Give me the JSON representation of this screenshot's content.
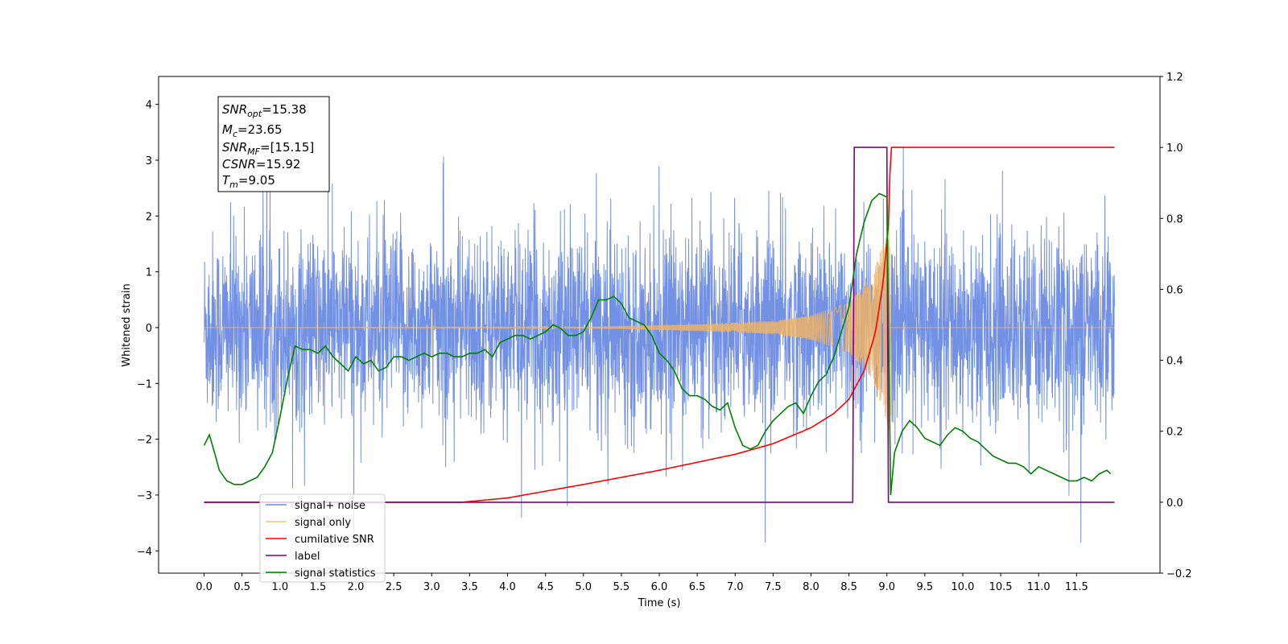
{
  "chart_data": {
    "type": "line",
    "title": "",
    "xlabel": "Time (s)",
    "ylabel_left": "Whitened strain",
    "ylabel_right": "",
    "xlim": [
      -0.6,
      12.6
    ],
    "ylim_left": [
      -4.4,
      4.5
    ],
    "ylim_right": [
      -0.2,
      1.2
    ],
    "x_ticks": [
      "0.0",
      "0.5",
      "1.0",
      "1.5",
      "2.0",
      "2.5",
      "3.0",
      "3.5",
      "4.0",
      "4.5",
      "5.0",
      "5.5",
      "6.0",
      "6.5",
      "7.0",
      "7.5",
      "8.0",
      "8.5",
      "9.0",
      "9.5",
      "10.0",
      "10.5",
      "11.0",
      "11.5"
    ],
    "y_ticks_left": [
      "−4",
      "−3",
      "−2",
      "−1",
      "0",
      "1",
      "2",
      "3",
      "4"
    ],
    "y_ticks_right": [
      "−0.2",
      "0.0",
      "0.2",
      "0.4",
      "0.6",
      "0.8",
      "1.0",
      "1.2"
    ],
    "grid": false,
    "legend_position": "lower-left",
    "info_box": {
      "snr_opt": "=15.38",
      "mc": "=23.65",
      "snr_mf": "=[15.15]",
      "csnr": "=15.92",
      "tm": "=9.05"
    },
    "series": [
      {
        "name": "signal+ noise",
        "axis": "left",
        "color": "#6b8be3",
        "note": "whitened noise + signal, roughly ±1.5 std with spikes to about 4.1",
        "x_range": [
          0,
          12
        ],
        "amplitude_range": [
          -3.85,
          4.13
        ]
      },
      {
        "name": "signal only",
        "axis": "left",
        "color": "#f4b45f",
        "x": [
          0,
          4.5,
          5.5,
          6.5,
          7.5,
          8.0,
          8.5,
          8.8,
          9.0,
          9.05,
          9.1,
          12
        ],
        "envelope": [
          0,
          0.005,
          0.03,
          0.06,
          0.12,
          0.22,
          0.45,
          0.9,
          1.7,
          2.0,
          0,
          0
        ]
      },
      {
        "name": "cumilative SNR",
        "axis": "right",
        "color": "#ff0000",
        "x": [
          0,
          3.4,
          4.0,
          5.0,
          6.0,
          7.0,
          7.5,
          8.0,
          8.3,
          8.5,
          8.7,
          8.85,
          8.95,
          9.02,
          9.05,
          12
        ],
        "values": [
          0.0,
          0.0,
          0.012,
          0.05,
          0.09,
          0.135,
          0.165,
          0.21,
          0.25,
          0.29,
          0.37,
          0.48,
          0.62,
          0.78,
          1.0,
          1.0
        ]
      },
      {
        "name": "label",
        "axis": "right",
        "color": "#800080",
        "x": [
          0,
          8.55,
          8.57,
          9.0,
          9.02,
          12
        ],
        "values": [
          0,
          0,
          1,
          1,
          0,
          0
        ]
      },
      {
        "name": "signal statistics",
        "axis": "right",
        "color": "#008000",
        "x": [
          0.0,
          0.07,
          0.15,
          0.2,
          0.3,
          0.4,
          0.5,
          0.6,
          0.7,
          0.8,
          0.9,
          1.0,
          1.1,
          1.2,
          1.3,
          1.4,
          1.5,
          1.6,
          1.7,
          1.8,
          1.9,
          2.0,
          2.1,
          2.2,
          2.3,
          2.4,
          2.5,
          2.6,
          2.7,
          2.8,
          2.9,
          3.0,
          3.1,
          3.2,
          3.3,
          3.4,
          3.5,
          3.6,
          3.7,
          3.8,
          3.9,
          4.0,
          4.1,
          4.2,
          4.3,
          4.4,
          4.5,
          4.6,
          4.7,
          4.8,
          4.9,
          5.0,
          5.1,
          5.2,
          5.3,
          5.4,
          5.5,
          5.6,
          5.7,
          5.8,
          5.9,
          6.0,
          6.1,
          6.2,
          6.3,
          6.4,
          6.5,
          6.6,
          6.7,
          6.8,
          6.9,
          7.0,
          7.1,
          7.2,
          7.3,
          7.4,
          7.5,
          7.6,
          7.7,
          7.8,
          7.9,
          8.0,
          8.1,
          8.2,
          8.3,
          8.4,
          8.5,
          8.6,
          8.7,
          8.8,
          8.9,
          9.0,
          9.05,
          9.1,
          9.2,
          9.3,
          9.4,
          9.5,
          9.6,
          9.7,
          9.8,
          9.9,
          10.0,
          10.1,
          10.2,
          10.3,
          10.4,
          10.5,
          10.6,
          10.7,
          10.8,
          10.9,
          11.0,
          11.1,
          11.2,
          11.3,
          11.4,
          11.5,
          11.6,
          11.7,
          11.8,
          11.9,
          11.95
        ],
        "values": [
          0.16,
          0.19,
          0.13,
          0.09,
          0.06,
          0.05,
          0.05,
          0.06,
          0.07,
          0.1,
          0.14,
          0.24,
          0.35,
          0.44,
          0.43,
          0.43,
          0.42,
          0.44,
          0.41,
          0.39,
          0.37,
          0.41,
          0.39,
          0.4,
          0.37,
          0.38,
          0.41,
          0.41,
          0.4,
          0.41,
          0.42,
          0.41,
          0.42,
          0.42,
          0.41,
          0.41,
          0.42,
          0.42,
          0.43,
          0.41,
          0.45,
          0.46,
          0.47,
          0.47,
          0.46,
          0.47,
          0.48,
          0.5,
          0.49,
          0.47,
          0.47,
          0.48,
          0.52,
          0.57,
          0.57,
          0.58,
          0.56,
          0.52,
          0.51,
          0.5,
          0.47,
          0.42,
          0.4,
          0.37,
          0.32,
          0.3,
          0.3,
          0.29,
          0.27,
          0.26,
          0.28,
          0.21,
          0.16,
          0.15,
          0.16,
          0.2,
          0.23,
          0.25,
          0.27,
          0.28,
          0.25,
          0.3,
          0.34,
          0.36,
          0.41,
          0.48,
          0.55,
          0.7,
          0.79,
          0.85,
          0.87,
          0.86,
          0.02,
          0.14,
          0.2,
          0.23,
          0.21,
          0.18,
          0.17,
          0.16,
          0.19,
          0.21,
          0.2,
          0.18,
          0.17,
          0.15,
          0.13,
          0.12,
          0.11,
          0.11,
          0.1,
          0.08,
          0.1,
          0.09,
          0.08,
          0.07,
          0.06,
          0.06,
          0.07,
          0.06,
          0.08,
          0.09,
          0.08
        ]
      }
    ]
  }
}
